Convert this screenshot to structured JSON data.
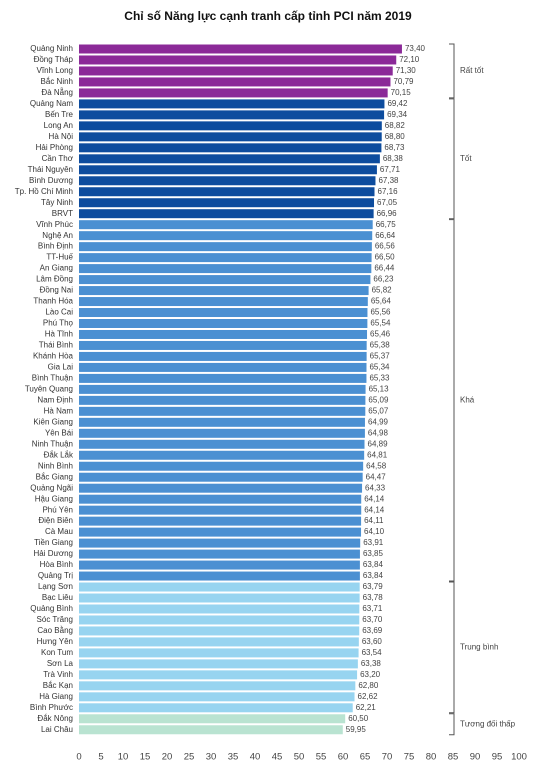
{
  "chart_data": {
    "type": "barh",
    "title": "Chỉ số Năng lực cạnh tranh cấp tỉnh PCI năm 2019",
    "xlim": [
      0,
      100
    ],
    "xticks": [
      0,
      5,
      10,
      15,
      20,
      25,
      30,
      35,
      40,
      45,
      50,
      55,
      60,
      65,
      70,
      75,
      80,
      85,
      90,
      95,
      100
    ],
    "series": [
      {
        "name": "Rất tốt",
        "color": "#8b2a98",
        "categories": [
          "Quảng Ninh",
          "Đồng Tháp",
          "Vĩnh Long",
          "Bắc Ninh",
          "Đà Nẵng"
        ],
        "values": [
          73.4,
          72.1,
          71.3,
          70.79,
          70.15
        ],
        "value_labels": [
          "73,40",
          "72,10",
          "71,30",
          "70,79",
          "70,15"
        ]
      },
      {
        "name": "Tốt",
        "color": "#0d4c9e",
        "categories": [
          "Quảng Nam",
          "Bến Tre",
          "Long An",
          "Hà Nội",
          "Hải Phòng",
          "Cần Thơ",
          "Thái Nguyên",
          "Bình Dương",
          "Tp. Hồ Chí Minh",
          "Tây Ninh",
          "BRVT"
        ],
        "values": [
          69.42,
          69.34,
          68.82,
          68.8,
          68.73,
          68.38,
          67.71,
          67.38,
          67.16,
          67.05,
          66.96
        ],
        "value_labels": [
          "69,42",
          "69,34",
          "68,82",
          "68,80",
          "68,73",
          "68,38",
          "67,71",
          "67,38",
          "67,16",
          "67,05",
          "66,96"
        ]
      },
      {
        "name": "Khá",
        "color": "#4b90d2",
        "categories": [
          "Vĩnh Phúc",
          "Nghệ An",
          "Bình Định",
          "TT-Huế",
          "An Giang",
          "Lâm Đồng",
          "Đồng Nai",
          "Thanh Hóa",
          "Lào Cai",
          "Phú Thọ",
          "Hà Tĩnh",
          "Thái Bình",
          "Khánh Hòa",
          "Gia Lai",
          "Bình Thuận",
          "Tuyên Quang",
          "Nam Định",
          "Hà Nam",
          "Kiên Giang",
          "Yên Bái",
          "Ninh Thuận",
          "Đắk Lắk",
          "Ninh Bình",
          "Bắc Giang",
          "Quảng Ngãi",
          "Hậu Giang",
          "Phú Yên",
          "Điện Biên",
          "Cà Mau",
          "Tiền Giang",
          "Hải Dương",
          "Hòa Bình",
          "Quảng Trị"
        ],
        "values": [
          66.75,
          66.64,
          66.56,
          66.5,
          66.44,
          66.23,
          65.82,
          65.64,
          65.56,
          65.54,
          65.46,
          65.38,
          65.37,
          65.34,
          65.33,
          65.13,
          65.09,
          65.07,
          64.99,
          64.98,
          64.89,
          64.81,
          64.58,
          64.47,
          64.33,
          64.14,
          64.14,
          64.11,
          64.1,
          63.91,
          63.85,
          63.84,
          63.84
        ],
        "value_labels": [
          "66,75",
          "66,64",
          "66,56",
          "66,50",
          "66,44",
          "66,23",
          "65,82",
          "65,64",
          "65,56",
          "65,54",
          "65,46",
          "65,38",
          "65,37",
          "65,34",
          "65,33",
          "65,13",
          "65,09",
          "65,07",
          "64,99",
          "64,98",
          "64,89",
          "64,81",
          "64,58",
          "64,47",
          "64,33",
          "64,14",
          "64,14",
          "64,11",
          "64,10",
          "63,91",
          "63,85",
          "63,84",
          "63,84"
        ]
      },
      {
        "name": "Trung bình",
        "color": "#97d4f0",
        "categories": [
          "Lạng Sơn",
          "Bạc Liêu",
          "Quảng Bình",
          "Sóc Trăng",
          "Cao Bằng",
          "Hưng Yên",
          "Kon Tum",
          "Sơn La",
          "Trà Vinh",
          "Bắc Kạn",
          "Hà Giang",
          "Bình Phước"
        ],
        "values": [
          63.79,
          63.78,
          63.71,
          63.7,
          63.69,
          63.6,
          63.54,
          63.38,
          63.2,
          62.8,
          62.62,
          62.21
        ],
        "value_labels": [
          "63,79",
          "63,78",
          "63,71",
          "63,70",
          "63,69",
          "63,60",
          "63,54",
          "63,38",
          "63,20",
          "62,80",
          "62,62",
          "62,21"
        ]
      },
      {
        "name": "Tương đối thấp",
        "color": "#b9e3d1",
        "categories": [
          "Đắk Nông",
          "Lai Châu"
        ],
        "values": [
          60.5,
          59.95
        ],
        "value_labels": [
          "60,50",
          "59,95"
        ]
      }
    ]
  }
}
